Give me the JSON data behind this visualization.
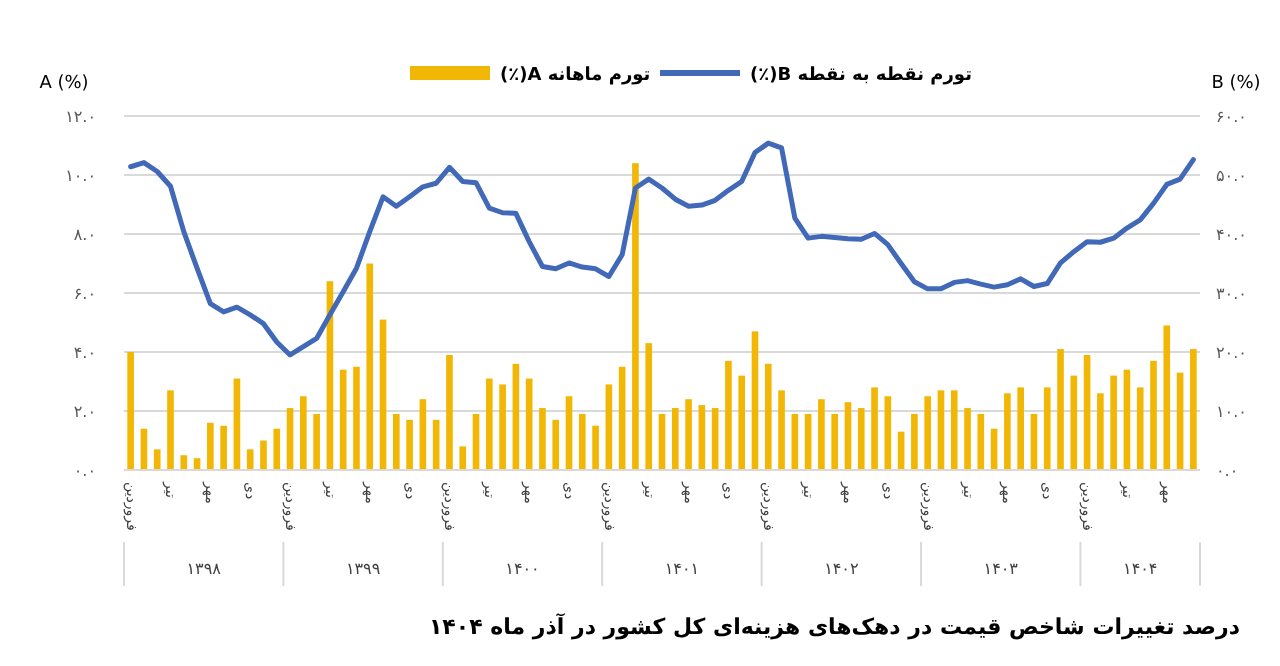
{
  "chart_data": {
    "type": "bar",
    "title": "درصد تغییرات شاخص قیمت در دهک‌های هزینه‌ای کل کشور در آذر ماه ۱۴۰۴",
    "ylabel": "A (%)",
    "y2label": "B (%)",
    "categories": [
      "فروردین",
      null,
      null,
      "تیر",
      null,
      null,
      "مهر",
      null,
      null,
      "دی",
      null,
      null,
      "فروردین",
      null,
      null,
      "تیر",
      null,
      null,
      "مهر",
      null,
      null,
      "دی",
      null,
      null,
      "فروردین",
      null,
      null,
      "تیر",
      null,
      null,
      "مهر",
      null,
      null,
      "دی",
      null,
      null,
      "فروردین",
      null,
      null,
      "تیر",
      null,
      null,
      "مهر",
      null,
      null,
      "دی",
      null,
      null,
      "فروردین",
      null,
      null,
      "تیر",
      null,
      null,
      "مهر",
      null,
      null,
      "دی",
      null,
      null,
      "فروردین",
      null,
      null,
      "تیر",
      null,
      null,
      "مهر",
      null,
      null,
      "دی",
      null,
      null,
      "فروردین",
      null,
      null,
      "تیر",
      null,
      null,
      "مهر",
      null,
      null
    ],
    "annotations": [
      "۱۳۹۸",
      "۱۳۹۹",
      "۱۴۰۰",
      "۱۴۰۱",
      "۱۴۰۲",
      "۱۴۰۳",
      "۱۴۰۴"
    ],
    "series": [
      {
        "name": "تورم ماهانه A(٪)",
        "color": "#f2b705",
        "values": [
          4.0,
          1.4,
          0.7,
          2.7,
          0.5,
          0.4,
          1.6,
          1.5,
          3.1,
          0.7,
          1.0,
          1.4,
          2.1,
          2.5,
          1.9,
          6.4,
          3.4,
          3.5,
          7.0,
          5.1,
          1.9,
          1.7,
          2.4,
          1.7,
          3.9,
          0.8,
          1.9,
          3.1,
          2.9,
          3.6,
          3.1,
          2.1,
          1.7,
          2.5,
          1.9,
          1.5,
          2.9,
          3.5,
          10.4,
          4.3,
          1.9,
          2.1,
          2.4,
          2.2,
          2.1,
          3.7,
          3.2,
          4.7,
          3.6,
          2.7,
          1.9,
          1.9,
          2.4,
          1.9,
          2.3,
          2.1,
          2.8,
          2.5,
          1.3,
          1.9,
          2.5,
          2.7,
          2.7,
          2.1,
          1.9,
          1.4,
          2.6,
          2.8,
          1.9,
          2.8,
          4.1,
          3.2,
          3.9,
          2.6,
          3.2,
          3.4,
          2.8,
          3.7,
          4.9,
          3.3,
          4.1
        ]
      },
      {
        "name": "تورم نقطه به نقطه B(٪)",
        "type": "line",
        "axis": "y2",
        "color": "#4169b8",
        "values": [
          51.4,
          52.1,
          50.6,
          48.1,
          40.4,
          34.2,
          28.2,
          26.8,
          27.6,
          26.3,
          24.8,
          21.7,
          19.5,
          20.9,
          22.3,
          26.3,
          30.2,
          34.2,
          40.4,
          46.3,
          44.7,
          46.3,
          48.0,
          48.6,
          51.3,
          48.9,
          48.7,
          44.4,
          43.6,
          43.5,
          38.7,
          34.5,
          34.1,
          35.1,
          34.4,
          34.1,
          32.8,
          36.5,
          47.8,
          49.3,
          47.8,
          45.9,
          44.7,
          44.9,
          45.7,
          47.4,
          48.9,
          53.8,
          55.4,
          54.6,
          42.7,
          39.3,
          39.6,
          39.4,
          39.2,
          39.1,
          40.1,
          38.2,
          35.0,
          31.9,
          30.7,
          30.7,
          31.8,
          32.1,
          31.5,
          31.0,
          31.4,
          32.4,
          31.1,
          31.6,
          35.1,
          37.0,
          38.7,
          38.6,
          39.3,
          41.0,
          42.4,
          45.2,
          48.4,
          49.3,
          52.6
        ]
      }
    ],
    "ylim": [
      0,
      12
    ],
    "yticks": [
      {
        "value": 0,
        "label": "۰.۰"
      },
      {
        "value": 2,
        "label": "۲.۰"
      },
      {
        "value": 4,
        "label": "۴.۰"
      },
      {
        "value": 6,
        "label": "۶.۰"
      },
      {
        "value": 8,
        "label": "۸.۰"
      },
      {
        "value": 10,
        "label": "۱۰.۰"
      },
      {
        "value": 12,
        "label": "۱۲.۰"
      }
    ],
    "y2lim": [
      0,
      60
    ],
    "y2ticks": [
      {
        "value": 0,
        "label": "۰.۰"
      },
      {
        "value": 10,
        "label": "۱۰.۰"
      },
      {
        "value": 20,
        "label": "۲۰.۰"
      },
      {
        "value": 30,
        "label": "۳۰.۰"
      },
      {
        "value": 40,
        "label": "۴۰.۰"
      },
      {
        "value": 50,
        "label": "۵۰.۰"
      },
      {
        "value": 60,
        "label": "۶۰.۰"
      }
    ],
    "grid": "y",
    "legend": "top"
  }
}
